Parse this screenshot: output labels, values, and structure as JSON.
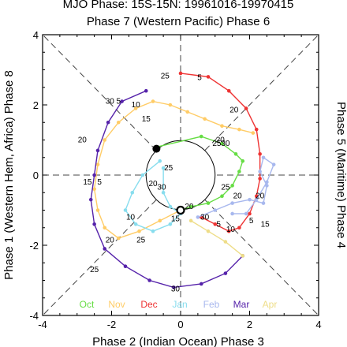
{
  "chart_data": {
    "type": "line",
    "title": "MJO Phase: 15S-15N: 19961016-19970415",
    "top_label": "Phase 7 (Western Pacific) Phase 6",
    "bottom_label": "Phase 2 (Indian Ocean) Phase 3",
    "left_label": "Phase 1 (Western Hem, Africa) Phase 8",
    "right_label": "Phase 5 (Maritime) Phase 4",
    "xlim": [
      -4,
      4
    ],
    "ylim": [
      -4,
      4
    ],
    "x_ticks": [
      "-4",
      "-2",
      "0",
      "2",
      "4"
    ],
    "y_ticks": [
      "-4",
      "-2",
      "0",
      "2",
      "4"
    ],
    "x_tick_values": [
      -4,
      -2,
      0,
      2,
      4
    ],
    "y_tick_values": [
      -4,
      -2,
      0,
      2,
      4
    ],
    "unit_circle_radius": 1,
    "grid": false,
    "legend_placement": "bottom",
    "series": [
      {
        "name": "Oct",
        "color": "#66dd44",
        "points": [
          [
            -0.7,
            0.8
          ],
          [
            0.6,
            1.1
          ],
          [
            1.2,
            0.9
          ],
          [
            1.6,
            0.6
          ],
          [
            1.8,
            0.4
          ],
          [
            1.7,
            0.1
          ],
          [
            1.5,
            -0.3
          ],
          [
            1.2,
            -0.6
          ],
          [
            0.8,
            -0.8
          ],
          [
            0.3,
            -0.9
          ],
          [
            0.0,
            -1.0
          ]
        ]
      },
      {
        "name": "Nov",
        "color": "#ffcc66",
        "points": [
          [
            0.0,
            -1.0
          ],
          [
            -0.6,
            -1.3
          ],
          [
            -1.2,
            -1.6
          ],
          [
            -1.8,
            -1.8
          ],
          [
            -2.2,
            -1.5
          ],
          [
            -2.4,
            -1.0
          ],
          [
            -2.5,
            -0.4
          ],
          [
            -2.4,
            0.3
          ],
          [
            -2.2,
            1.0
          ],
          [
            -1.8,
            1.5
          ],
          [
            -1.3,
            1.9
          ],
          [
            -0.8,
            2.1
          ],
          [
            -0.3,
            2.0
          ],
          [
            0.2,
            1.8
          ],
          [
            0.7,
            1.6
          ],
          [
            1.2,
            1.4
          ],
          [
            1.7,
            1.3
          ],
          [
            2.1,
            1.2
          ]
        ]
      },
      {
        "name": "Dec",
        "color": "#ee3333",
        "points": [
          [
            0.0,
            2.9
          ],
          [
            0.8,
            2.8
          ],
          [
            1.4,
            2.4
          ],
          [
            1.9,
            1.9
          ],
          [
            2.2,
            1.3
          ],
          [
            2.3,
            0.6
          ],
          [
            2.3,
            -0.1
          ],
          [
            2.2,
            -0.6
          ],
          [
            2.0,
            -1.1
          ],
          [
            1.7,
            -1.5
          ],
          [
            1.4,
            -1.6
          ],
          [
            1.0,
            -1.4
          ],
          [
            0.6,
            -1.2
          ]
        ]
      },
      {
        "name": "Jan",
        "color": "#88ddee",
        "points": [
          [
            -0.6,
            0.4
          ],
          [
            -1.1,
            0.0
          ],
          [
            -1.4,
            -0.5
          ],
          [
            -1.6,
            -1.0
          ],
          [
            -1.3,
            -1.4
          ],
          [
            -0.8,
            -1.6
          ],
          [
            -0.3,
            -1.4
          ],
          [
            0.0,
            -1.1
          ],
          [
            -0.3,
            -0.9
          ],
          [
            -0.5,
            -0.5
          ],
          [
            -0.5,
            0.2
          ]
        ]
      },
      {
        "name": "Feb",
        "color": "#a8b8ee",
        "points": [
          [
            0.5,
            -1.2
          ],
          [
            1.0,
            -1.0
          ],
          [
            1.5,
            -0.8
          ],
          [
            2.0,
            -0.7
          ],
          [
            2.4,
            -0.8
          ],
          [
            2.5,
            -0.3
          ],
          [
            2.3,
            0.1
          ],
          [
            2.4,
            0.5
          ],
          [
            2.7,
            0.3
          ],
          [
            2.5,
            -0.2
          ],
          [
            2.2,
            -0.7
          ],
          [
            1.9,
            -1.1
          ],
          [
            1.5,
            -1.1
          ]
        ]
      },
      {
        "name": "Mar",
        "color": "#5522aa",
        "points": [
          [
            -1.0,
            2.4
          ],
          [
            -1.7,
            2.1
          ],
          [
            -2.1,
            1.5
          ],
          [
            -2.4,
            0.7
          ],
          [
            -2.5,
            0.0
          ],
          [
            -2.6,
            -0.7
          ],
          [
            -2.5,
            -1.4
          ],
          [
            -2.2,
            -2.1
          ],
          [
            -1.6,
            -2.6
          ],
          [
            -0.9,
            -3.0
          ],
          [
            -0.2,
            -3.2
          ],
          [
            0.6,
            -3.1
          ],
          [
            1.3,
            -2.8
          ],
          [
            1.8,
            -2.3
          ]
        ]
      },
      {
        "name": "Apr",
        "color": "#eedd88",
        "points": [
          [
            1.8,
            -2.3
          ],
          [
            1.3,
            -1.9
          ],
          [
            0.8,
            -1.6
          ],
          [
            0.3,
            -1.3
          ]
        ]
      }
    ],
    "annotations": [
      {
        "text": "25",
        "x": -0.45,
        "y": 2.82
      },
      {
        "text": "5",
        "x": 0.55,
        "y": 2.78
      },
      {
        "text": "30",
        "x": -2.05,
        "y": 2.1
      },
      {
        "text": "5",
        "x": -1.8,
        "y": 2.1
      },
      {
        "text": "10",
        "x": -1.3,
        "y": 2.0
      },
      {
        "text": "20",
        "x": 1.55,
        "y": 1.85
      },
      {
        "text": "15",
        "x": -1.0,
        "y": 1.6
      },
      {
        "text": "20",
        "x": 1.15,
        "y": 1.0
      },
      {
        "text": "25",
        "x": 1.05,
        "y": 0.9
      },
      {
        "text": "30",
        "x": 1.3,
        "y": 0.9
      },
      {
        "text": "20",
        "x": -2.85,
        "y": 1.0
      },
      {
        "text": "25",
        "x": -0.35,
        "y": 0.2
      },
      {
        "text": "20",
        "x": -0.8,
        "y": -0.25
      },
      {
        "text": "30",
        "x": -0.55,
        "y": -0.35
      },
      {
        "text": "15",
        "x": -2.7,
        "y": -0.2
      },
      {
        "text": "5",
        "x": -2.35,
        "y": -0.2
      },
      {
        "text": "25",
        "x": 1.3,
        "y": -0.35
      },
      {
        "text": "20",
        "x": 1.65,
        "y": -0.6
      },
      {
        "text": "20",
        "x": 2.3,
        "y": -0.6
      },
      {
        "text": "20",
        "x": 0.25,
        "y": -0.9
      },
      {
        "text": "15",
        "x": 2.45,
        "y": -1.4
      },
      {
        "text": "30",
        "x": 0.7,
        "y": -1.2
      },
      {
        "text": "5",
        "x": 1.1,
        "y": -1.4
      },
      {
        "text": "5",
        "x": 2.05,
        "y": -1.3
      },
      {
        "text": "10",
        "x": 1.45,
        "y": -1.55
      },
      {
        "text": "15",
        "x": -0.15,
        "y": -1.25
      },
      {
        "text": "10",
        "x": -1.45,
        "y": -1.2
      },
      {
        "text": "20",
        "x": -2.05,
        "y": -1.85
      },
      {
        "text": "25",
        "x": -1.15,
        "y": -1.85
      },
      {
        "text": "25",
        "x": -2.5,
        "y": -2.7
      },
      {
        "text": "30",
        "x": -0.15,
        "y": -3.25
      }
    ],
    "markers": [
      {
        "x": -0.7,
        "y": 0.75,
        "style": "filled"
      },
      {
        "x": 0.0,
        "y": -1.0,
        "style": "open"
      }
    ]
  }
}
